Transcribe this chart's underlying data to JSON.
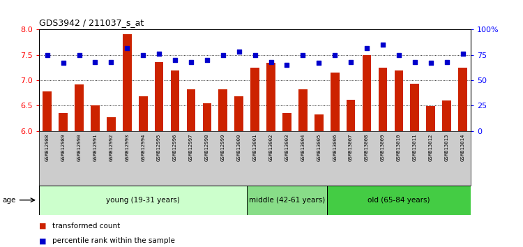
{
  "title": "GDS3942 / 211037_s_at",
  "samples": [
    "GSM812988",
    "GSM812989",
    "GSM812990",
    "GSM812991",
    "GSM812992",
    "GSM812993",
    "GSM812994",
    "GSM812995",
    "GSM812996",
    "GSM812997",
    "GSM812998",
    "GSM812999",
    "GSM813000",
    "GSM813001",
    "GSM813002",
    "GSM813003",
    "GSM813004",
    "GSM813005",
    "GSM813006",
    "GSM813007",
    "GSM813008",
    "GSM813009",
    "GSM813010",
    "GSM813011",
    "GSM813012",
    "GSM813013",
    "GSM813014"
  ],
  "bar_values": [
    6.78,
    6.35,
    6.92,
    6.5,
    6.27,
    7.91,
    6.68,
    7.36,
    7.19,
    6.82,
    6.54,
    6.82,
    6.68,
    7.25,
    7.35,
    6.35,
    6.82,
    6.33,
    7.15,
    6.61,
    7.5,
    7.25,
    7.2,
    6.93,
    6.49,
    6.6,
    7.25
  ],
  "dot_values": [
    75,
    67,
    75,
    68,
    68,
    82,
    75,
    76,
    70,
    68,
    70,
    75,
    78,
    75,
    68,
    65,
    75,
    67,
    75,
    68,
    82,
    85,
    75,
    68,
    67,
    68,
    76
  ],
  "ylim_left": [
    6.0,
    8.0
  ],
  "ylim_right": [
    0,
    100
  ],
  "yticks_left": [
    6.0,
    6.5,
    7.0,
    7.5,
    8.0
  ],
  "yticks_right": [
    0,
    25,
    50,
    75,
    100
  ],
  "ytick_labels_right": [
    "0",
    "25",
    "50",
    "75",
    "100%"
  ],
  "bar_color": "#cc2200",
  "dot_color": "#0000cc",
  "groups": [
    {
      "label": "young (19-31 years)",
      "start": 0,
      "end": 13,
      "color": "#ccffcc"
    },
    {
      "label": "middle (42-61 years)",
      "start": 13,
      "end": 18,
      "color": "#88dd88"
    },
    {
      "label": "old (65-84 years)",
      "start": 18,
      "end": 27,
      "color": "#44cc44"
    }
  ],
  "legend_bar_label": "transformed count",
  "legend_dot_label": "percentile rank within the sample",
  "age_label": "age",
  "bg_color": "#ffffff",
  "tick_bg_color": "#cccccc"
}
